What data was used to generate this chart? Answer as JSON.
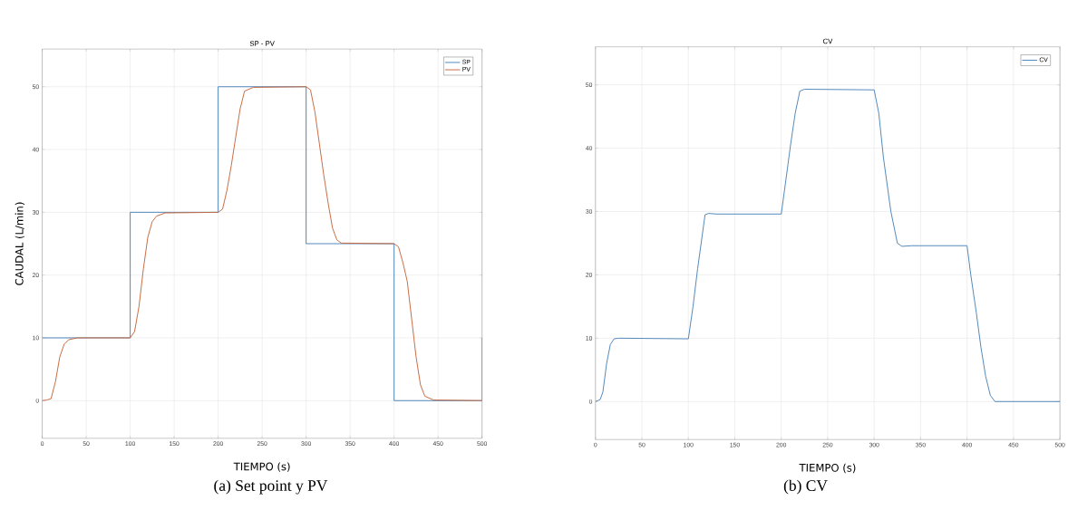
{
  "chart_data": [
    {
      "type": "line",
      "title": "SP - PV",
      "xlabel": "TIEMPO (s)",
      "ylabel": "CAUDAL (L/min)",
      "annotations": [
        "(a) Set point y PV"
      ],
      "xlim": [
        0,
        500
      ],
      "ylim": [
        -6,
        56
      ],
      "xticks": [
        0,
        50,
        100,
        150,
        200,
        250,
        300,
        350,
        400,
        450,
        500
      ],
      "yticks": [
        0,
        10,
        20,
        30,
        40,
        50
      ],
      "grid": true,
      "legend": "top right",
      "series": [
        {
          "name": "SP",
          "color": "#4f86b8",
          "x": [
            0,
            100,
            100,
            200,
            200,
            300,
            300,
            400,
            400,
            500,
            500
          ],
          "values": [
            10,
            10,
            30,
            30,
            50,
            50,
            25,
            25,
            0,
            0,
            10
          ]
        },
        {
          "name": "PV",
          "color": "#c8693f",
          "x": [
            0,
            5,
            10,
            15,
            20,
            25,
            30,
            40,
            100,
            105,
            110,
            115,
            120,
            125,
            130,
            140,
            200,
            205,
            210,
            215,
            220,
            225,
            230,
            240,
            300,
            305,
            310,
            315,
            320,
            325,
            330,
            335,
            340,
            400,
            405,
            410,
            415,
            420,
            425,
            430,
            435,
            445,
            500
          ],
          "values": [
            0,
            0.1,
            0.3,
            3,
            7,
            9,
            9.7,
            10,
            10,
            11,
            15,
            21,
            26,
            28.5,
            29.4,
            29.9,
            30,
            30.5,
            33.5,
            37.5,
            42,
            46.5,
            49.3,
            49.9,
            50,
            49.5,
            46,
            41,
            36,
            31.5,
            27.5,
            25.6,
            25.1,
            25,
            24.5,
            22,
            19,
            13,
            7,
            2.5,
            0.7,
            0.1,
            0
          ]
        }
      ]
    },
    {
      "type": "line",
      "title": "CV",
      "xlabel": "TIEMPO (s)",
      "annotations": [
        "(b) CV"
      ],
      "xlim": [
        0,
        500
      ],
      "ylim": [
        -6,
        56
      ],
      "xticks": [
        0,
        50,
        100,
        150,
        200,
        250,
        300,
        350,
        400,
        450,
        500
      ],
      "yticks": [
        0,
        10,
        20,
        30,
        40,
        50
      ],
      "grid": true,
      "legend": "top right",
      "series": [
        {
          "name": "CV",
          "color": "#4f86b8",
          "x": [
            0,
            5,
            8,
            12,
            16,
            20,
            25,
            100,
            105,
            110,
            118,
            122,
            130,
            200,
            205,
            210,
            215,
            220,
            225,
            300,
            305,
            310,
            318,
            325,
            330,
            340,
            400,
            404,
            410,
            415,
            420,
            425,
            430,
            500
          ],
          "values": [
            0,
            0.3,
            1.5,
            6,
            9,
            9.9,
            10,
            9.9,
            15,
            21,
            29.5,
            29.7,
            29.6,
            29.6,
            35,
            40.5,
            45.5,
            49,
            49.3,
            49.2,
            45.5,
            38.5,
            30,
            25,
            24.5,
            24.6,
            24.6,
            20,
            14,
            8.5,
            4,
            1,
            0,
            0
          ]
        }
      ]
    }
  ]
}
